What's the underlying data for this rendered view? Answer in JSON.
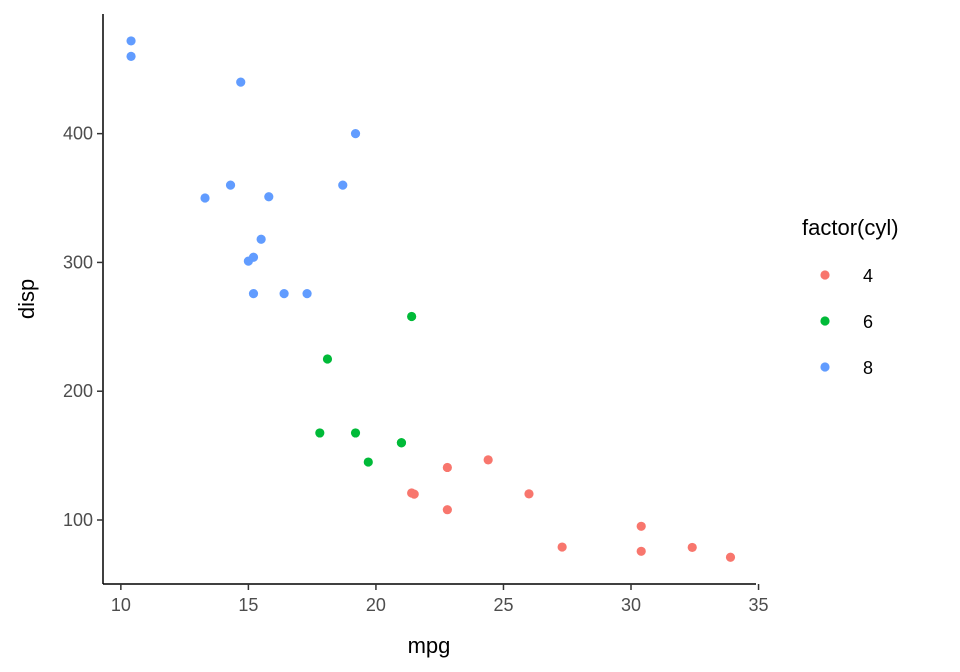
{
  "chart_data": {
    "type": "scatter",
    "xlabel": "mpg",
    "ylabel": "disp",
    "xlim": [
      9.3,
      34.9
    ],
    "ylim": [
      50.3,
      492.9
    ],
    "x_ticks": [
      10,
      15,
      20,
      25,
      30,
      35
    ],
    "y_ticks": [
      100,
      200,
      300,
      400
    ],
    "grid": false,
    "legend": {
      "title": "factor(cyl)",
      "placement": "right"
    },
    "series": [
      {
        "name": "4",
        "color": "#F8766D",
        "points": [
          {
            "x": 22.8,
            "y": 108
          },
          {
            "x": 24.4,
            "y": 146.7
          },
          {
            "x": 22.8,
            "y": 140.8
          },
          {
            "x": 32.4,
            "y": 78.7
          },
          {
            "x": 30.4,
            "y": 75.7
          },
          {
            "x": 33.9,
            "y": 71.1
          },
          {
            "x": 21.5,
            "y": 120.1
          },
          {
            "x": 27.3,
            "y": 79
          },
          {
            "x": 26.0,
            "y": 120.3
          },
          {
            "x": 30.4,
            "y": 95.1
          },
          {
            "x": 21.4,
            "y": 121
          }
        ]
      },
      {
        "name": "6",
        "color": "#00BA38",
        "points": [
          {
            "x": 21.0,
            "y": 160
          },
          {
            "x": 21.0,
            "y": 160
          },
          {
            "x": 21.4,
            "y": 258
          },
          {
            "x": 18.1,
            "y": 225
          },
          {
            "x": 19.2,
            "y": 167.6
          },
          {
            "x": 17.8,
            "y": 167.6
          },
          {
            "x": 19.7,
            "y": 145
          }
        ]
      },
      {
        "name": "8",
        "color": "#619CFF",
        "points": [
          {
            "x": 18.7,
            "y": 360
          },
          {
            "x": 14.3,
            "y": 360
          },
          {
            "x": 16.4,
            "y": 275.8
          },
          {
            "x": 17.3,
            "y": 275.8
          },
          {
            "x": 15.2,
            "y": 275.8
          },
          {
            "x": 10.4,
            "y": 472
          },
          {
            "x": 10.4,
            "y": 460
          },
          {
            "x": 14.7,
            "y": 440
          },
          {
            "x": 15.5,
            "y": 318
          },
          {
            "x": 15.2,
            "y": 304
          },
          {
            "x": 13.3,
            "y": 350
          },
          {
            "x": 19.2,
            "y": 400
          },
          {
            "x": 15.8,
            "y": 351
          },
          {
            "x": 15.0,
            "y": 301
          }
        ]
      }
    ]
  }
}
